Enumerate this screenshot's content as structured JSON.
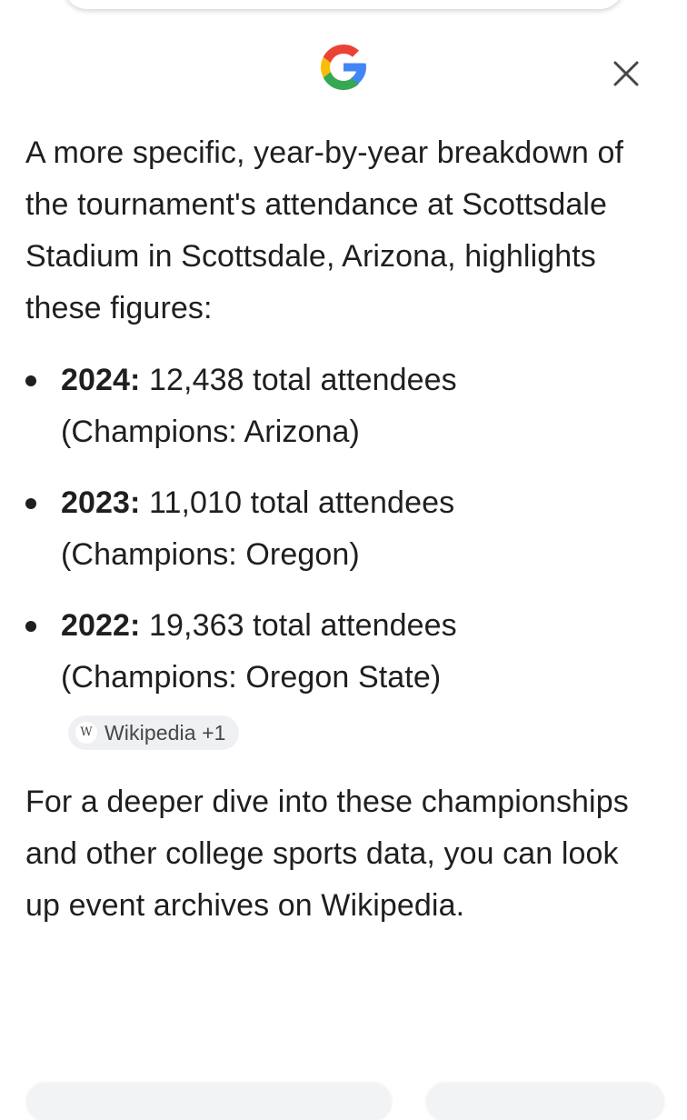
{
  "header": {
    "logo_icon": "google-g-icon",
    "close_icon": "close-icon"
  },
  "intro": "A more specific, year-by-year breakdown of the tournament's attendance at Scottsdale Stadium in Scottsdale, Arizona, highlights these figures:",
  "items": [
    {
      "year": "2024:",
      "text": " 12,438 total attendees (Champions: Arizona)"
    },
    {
      "year": "2023:",
      "text": " 11,010 total attendees (Champions: Oregon)"
    },
    {
      "year": "2022:",
      "text": " 19,363 total attendees (Champions: Oregon State)"
    }
  ],
  "source_chip": {
    "icon": "wikipedia-icon",
    "icon_letter": "W",
    "label": "Wikipedia +1"
  },
  "closing": "For a deeper dive into these championships and other college sports data, you can look up event archives on Wikipedia.",
  "colors": {
    "text": "#1f1f1f",
    "chip_bg": "#eef0f3",
    "g_blue": "#4285F4",
    "g_red": "#EA4335",
    "g_yellow": "#FBBC05",
    "g_green": "#34A853"
  }
}
